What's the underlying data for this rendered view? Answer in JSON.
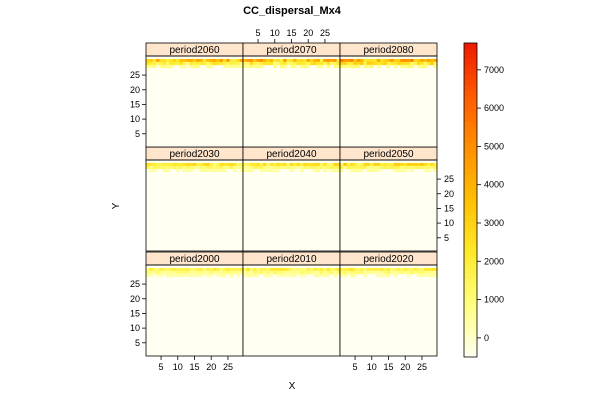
{
  "chart_data": {
    "type": "heatmap",
    "title": "CC_dispersal_Mx4",
    "xlabel": "X",
    "ylabel": "Y",
    "xlim": [
      0.5,
      29.5
    ],
    "ylim": [
      0.5,
      31.5
    ],
    "x_ticks": [
      5,
      10,
      15,
      20,
      25
    ],
    "y_ticks": [
      5,
      10,
      15,
      20,
      25
    ],
    "layout": {
      "columns": 3,
      "rows": 3,
      "order": "bottom-left, left-to-right, upward"
    },
    "panels": [
      {
        "label": "period2000",
        "peak": 2200
      },
      {
        "label": "period2010",
        "peak": 2400
      },
      {
        "label": "period2020",
        "peak": 2500
      },
      {
        "label": "period2030",
        "peak": 2900
      },
      {
        "label": "period2040",
        "peak": 3000
      },
      {
        "label": "period2050",
        "peak": 3400
      },
      {
        "label": "period2060",
        "peak": 4700
      },
      {
        "label": "period2070",
        "peak": 5000
      },
      {
        "label": "period2080",
        "peak": 6000
      }
    ],
    "colorbar": {
      "range": [
        -500,
        7700
      ],
      "ticks": [
        0,
        1000,
        2000,
        3000,
        4000,
        5000,
        6000,
        7000
      ],
      "palette": [
        "#fffff2",
        "#ffff80",
        "#ffea2a",
        "#ffbf00",
        "#ff9000",
        "#ff5a00",
        "#ee1a00"
      ]
    },
    "background_color": "#fffff2",
    "strip_color": "#ffe5cc",
    "grid": false
  }
}
